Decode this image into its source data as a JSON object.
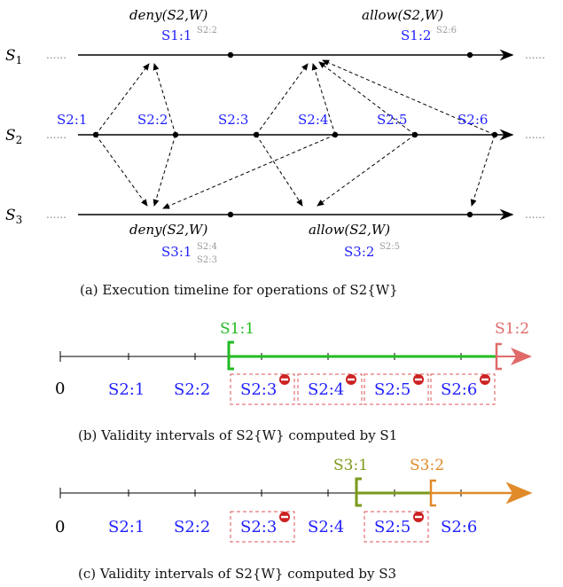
{
  "timeline": {
    "servers": [
      "S1",
      "S2",
      "S3"
    ],
    "ellipsis": "......",
    "top_ops": {
      "deny": "deny(S2,W)",
      "deny_tag": "S1:1",
      "deny_sup": "S2:2",
      "allow": "allow(S2,W)",
      "allow_tag": "S1:2",
      "allow_sup": "S2:6"
    },
    "s2_events": [
      "S2:1",
      "S2:2",
      "S2:3",
      "S2:4",
      "S2:5",
      "S2:6"
    ],
    "bottom_ops": {
      "deny": "deny(S2,W)",
      "deny_tag": "S3:1",
      "deny_sup1": "S2:4",
      "deny_sup2": "S2:3",
      "allow": "allow(S2,W)",
      "allow_tag": "S3:2",
      "allow_sup": "S2:5"
    },
    "caption": "(a) Execution timeline for operations of S2{W}"
  },
  "validity_s1": {
    "origin": "0",
    "start_label": "S1:1",
    "end_label": "S1:2",
    "events": [
      "S2:1",
      "S2:2",
      "S2:3",
      "S2:4",
      "S2:5",
      "S2:6"
    ],
    "revoked": [
      "S2:3",
      "S2:4",
      "S2:5",
      "S2:6"
    ],
    "caption": "(b) Validity intervals of S2{W} computed by S1",
    "colors": {
      "start": "#22bb22",
      "end": "#e06a6a"
    }
  },
  "validity_s3": {
    "origin": "0",
    "start_label": "S3:1",
    "end_label": "S3:2",
    "events": [
      "S2:1",
      "S2:2",
      "S2:3",
      "S2:4",
      "S2:5",
      "S2:6"
    ],
    "revoked": [
      "S2:3",
      "S2:5"
    ],
    "caption": "(c) Validity intervals of S2{W} computed by S3",
    "colors": {
      "start": "#7a9a1a",
      "end": "#e08a2a"
    }
  },
  "colors": {
    "event_label": "#1f1fff",
    "sup_label": "#9a9a9a",
    "revoked_box": "#dd5555",
    "revoke_icon": "#cc2222"
  }
}
